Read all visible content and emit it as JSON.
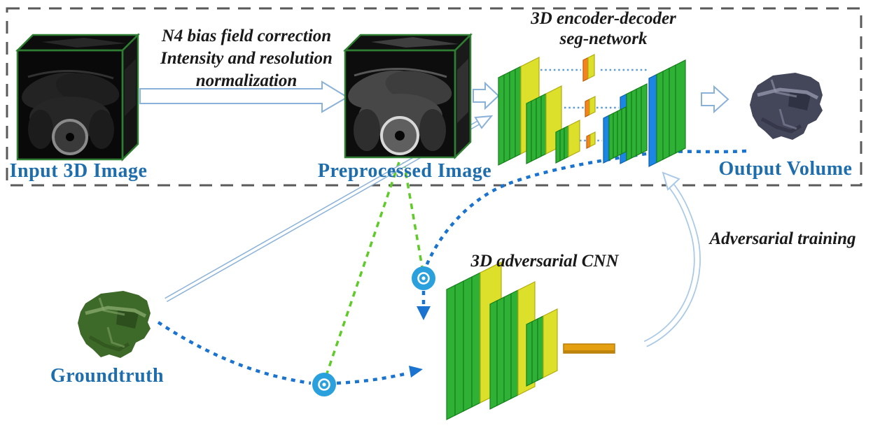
{
  "labels": {
    "input_image": "Input 3D Image",
    "preprocess_line1": "N4 bias field correction",
    "preprocess_line2": "Intensity and resolution",
    "preprocess_line3": "normalization",
    "preprocessed_image": "Preprocessed Image",
    "seg_network_line1": "3D encoder-decoder",
    "seg_network_line2": "seg-network",
    "output_volume": "Output Volume",
    "groundtruth": "Groundtruth",
    "adversarial_cnn": "3D adversarial CNN",
    "adversarial_training": "Adversarial training"
  },
  "icons": {
    "elementwise_product_operator": "⊙",
    "block_arrow": "hollow-right-arrow",
    "curved_arrow": "hollow-curved-arrow"
  },
  "colors": {
    "label_blue": "#1e6dad",
    "annotation_black": "#1a1a1a",
    "border_gray": "#5a5a5a",
    "layer_green": "#2eb135",
    "layer_green_edge": "#157f1c",
    "layer_yellow": "#dce02a",
    "layer_yellow_edge": "#b2ac10",
    "layer_blue": "#1b86e3",
    "layer_blue_edge": "#0e5fae",
    "layer_orange": "#f5831f",
    "layer_orange_edge": "#c05f08",
    "fc_bar_gold": "#e5a011",
    "fc_bar_edge": "#b97f0a",
    "dashed_blue": "#1a73cf",
    "dashed_green": "#5ecb28",
    "skip_blue": "#5b9bd5",
    "operator_blue": "#2aa0dd",
    "arrow_outline": "#8ab1d8",
    "cube_edge_green": "#2e7d32",
    "groundtruth_green": "#3e6a29",
    "groundtruth_dark": "#29491a",
    "groundtruth_light": "#86a86a",
    "output_gray": "#44465a",
    "output_dark": "#2b2d3d",
    "output_light": "#9496ab"
  }
}
